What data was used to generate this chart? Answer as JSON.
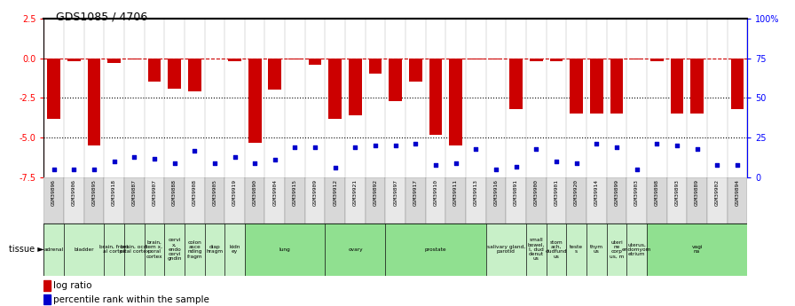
{
  "title": "GDS1085 / 4706",
  "gsm_labels": [
    "GSM39896",
    "GSM39906",
    "GSM39895",
    "GSM39918",
    "GSM39887",
    "GSM39907",
    "GSM39888",
    "GSM39908",
    "GSM39905",
    "GSM39919",
    "GSM39890",
    "GSM39904",
    "GSM39915",
    "GSM39909",
    "GSM39912",
    "GSM39921",
    "GSM39892",
    "GSM39897",
    "GSM39917",
    "GSM39910",
    "GSM39911",
    "GSM39913",
    "GSM39916",
    "GSM39891",
    "GSM39900",
    "GSM39901",
    "GSM39920",
    "GSM39914",
    "GSM39899",
    "GSM39903",
    "GSM39898",
    "GSM39893",
    "GSM39889",
    "GSM39902",
    "GSM39894"
  ],
  "log_ratio": [
    -3.8,
    -0.2,
    -5.5,
    -0.3,
    -0.1,
    -1.5,
    -1.9,
    -2.1,
    -0.05,
    -0.2,
    -5.3,
    -2.0,
    -0.1,
    -0.4,
    -3.8,
    -3.6,
    -1.0,
    -2.7,
    -1.5,
    -4.8,
    -5.5,
    -0.1,
    -0.1,
    -3.2,
    -0.2,
    -0.2,
    -3.5,
    -3.5,
    -3.5,
    -0.1,
    -0.2,
    -3.5,
    -3.5,
    -0.05,
    -3.2
  ],
  "pct_rank_pct": [
    5,
    5,
    5,
    10,
    13,
    12,
    9,
    17,
    9,
    13,
    9,
    11,
    19,
    19,
    6,
    19,
    20,
    20,
    21,
    8,
    9,
    18,
    5,
    7,
    18,
    10,
    9,
    21,
    19,
    5,
    21,
    20,
    18,
    8,
    8
  ],
  "ylim_left": [
    -7.5,
    2.5
  ],
  "ylim_right": [
    0,
    100
  ],
  "yticks_left": [
    2.5,
    0.0,
    -2.5,
    -5.0,
    -7.5
  ],
  "yticks_right": [
    100,
    75,
    50,
    25,
    0
  ],
  "bar_color": "#cc0000",
  "dot_color": "#0000cc",
  "dotted_lines": [
    -2.5,
    -5.0
  ],
  "tissue_groups": [
    {
      "label": "adrenal",
      "start": 0,
      "end": 1,
      "color": "#c8f0c8"
    },
    {
      "label": "bladder",
      "start": 1,
      "end": 3,
      "color": "#c8f0c8"
    },
    {
      "label": "brain, front\nal cortex",
      "start": 3,
      "end": 4,
      "color": "#c8f0c8"
    },
    {
      "label": "brain, occi\npital cortex",
      "start": 4,
      "end": 5,
      "color": "#c8f0c8"
    },
    {
      "label": "brain,\ntem x,\nporal\ncortex",
      "start": 5,
      "end": 6,
      "color": "#c8f0c8"
    },
    {
      "label": "cervi\nx,\nendo\ncervi\ngndin",
      "start": 6,
      "end": 7,
      "color": "#c8f0c8"
    },
    {
      "label": "colon\nasce\nnding\nfragm",
      "start": 7,
      "end": 8,
      "color": "#c8f0c8"
    },
    {
      "label": "diap\nhragm",
      "start": 8,
      "end": 9,
      "color": "#c8f0c8"
    },
    {
      "label": "kidn\ney",
      "start": 9,
      "end": 10,
      "color": "#c8f0c8"
    },
    {
      "label": "lung",
      "start": 10,
      "end": 14,
      "color": "#90e090"
    },
    {
      "label": "ovary",
      "start": 14,
      "end": 17,
      "color": "#90e090"
    },
    {
      "label": "prostate",
      "start": 17,
      "end": 22,
      "color": "#90e090"
    },
    {
      "label": "salivary gland,\nparotid",
      "start": 22,
      "end": 24,
      "color": "#c8f0c8"
    },
    {
      "label": "small\nbowel,\nI, dud\ndenut\nus",
      "start": 24,
      "end": 25,
      "color": "#c8f0c8"
    },
    {
      "label": "stom\nach,\ndudfund\nus",
      "start": 25,
      "end": 26,
      "color": "#c8f0c8"
    },
    {
      "label": "teste\ns",
      "start": 26,
      "end": 27,
      "color": "#c8f0c8"
    },
    {
      "label": "thym\nus",
      "start": 27,
      "end": 28,
      "color": "#c8f0c8"
    },
    {
      "label": "uteri\nne\ncorp\nus, m",
      "start": 28,
      "end": 29,
      "color": "#c8f0c8"
    },
    {
      "label": "uterus,\nendomyom\netrium",
      "start": 29,
      "end": 30,
      "color": "#c8f0c8"
    },
    {
      "label": "vagi\nna",
      "start": 30,
      "end": 35,
      "color": "#90e090"
    }
  ]
}
